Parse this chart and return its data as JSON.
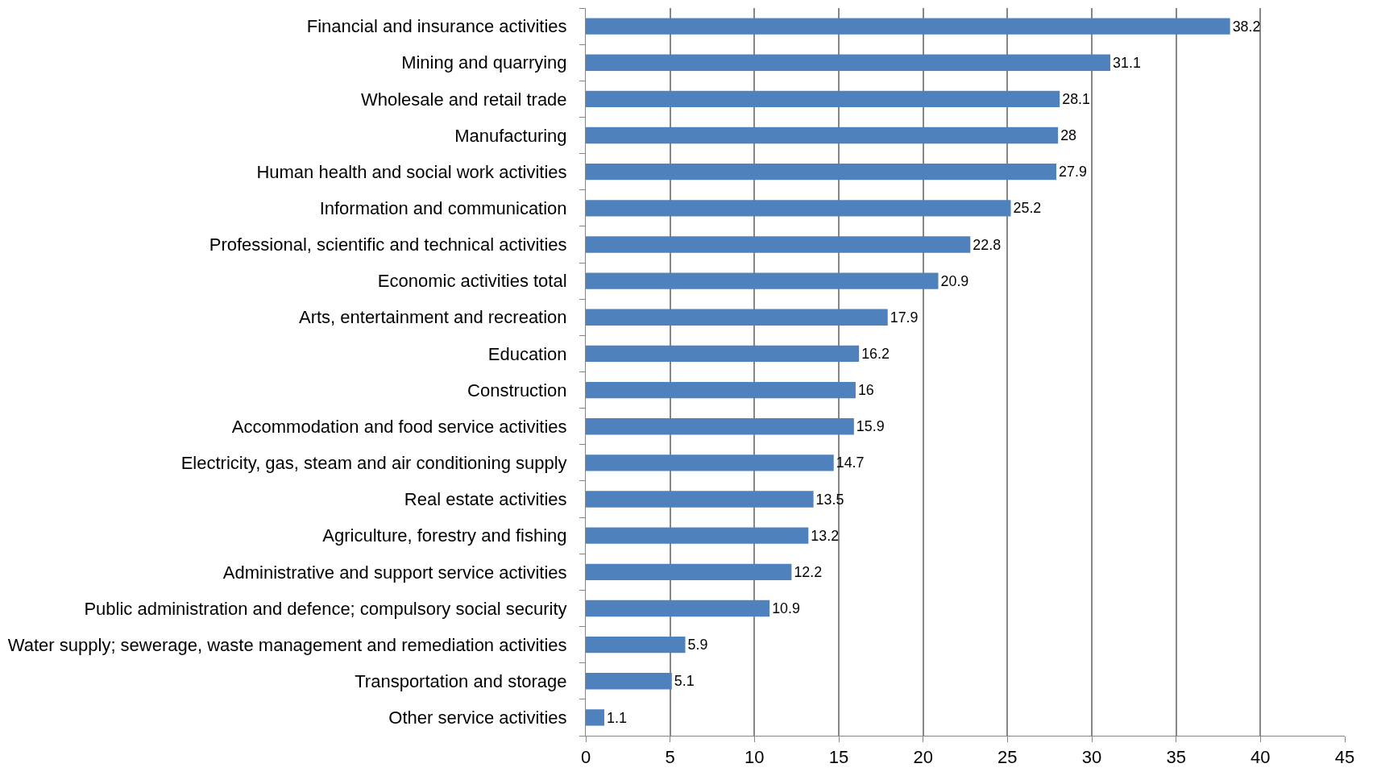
{
  "chart_data": {
    "type": "bar",
    "orientation": "horizontal",
    "categories": [
      "Financial and insurance activities",
      "Mining and quarrying",
      "Wholesale and retail trade",
      "Manufacturing",
      "Human health and social work activities",
      "Information and communication",
      "Professional, scientific and technical activities",
      "Economic activities total",
      "Arts, entertainment and recreation",
      "Education",
      "Construction",
      "Accommodation and food service activities",
      "Electricity, gas, steam and air conditioning supply",
      "Real estate activities",
      "Agriculture, forestry and fishing",
      "Administrative and support service activities",
      "Public administration and defence; compulsory social security",
      "Water supply; sewerage, waste management and remediation activities",
      "Transportation and storage",
      "Other service activities"
    ],
    "values": [
      38.2,
      31.1,
      28.1,
      28,
      27.9,
      25.2,
      22.8,
      20.9,
      17.9,
      16.2,
      16,
      15.9,
      14.7,
      13.5,
      13.2,
      12.2,
      10.9,
      5.9,
      5.1,
      1.1
    ],
    "color": "#4f81bd",
    "xlim": [
      0,
      45
    ],
    "xticks": [
      0,
      5,
      10,
      15,
      20,
      25,
      30,
      35,
      40,
      45
    ],
    "grid": "x",
    "data_labels": true
  }
}
